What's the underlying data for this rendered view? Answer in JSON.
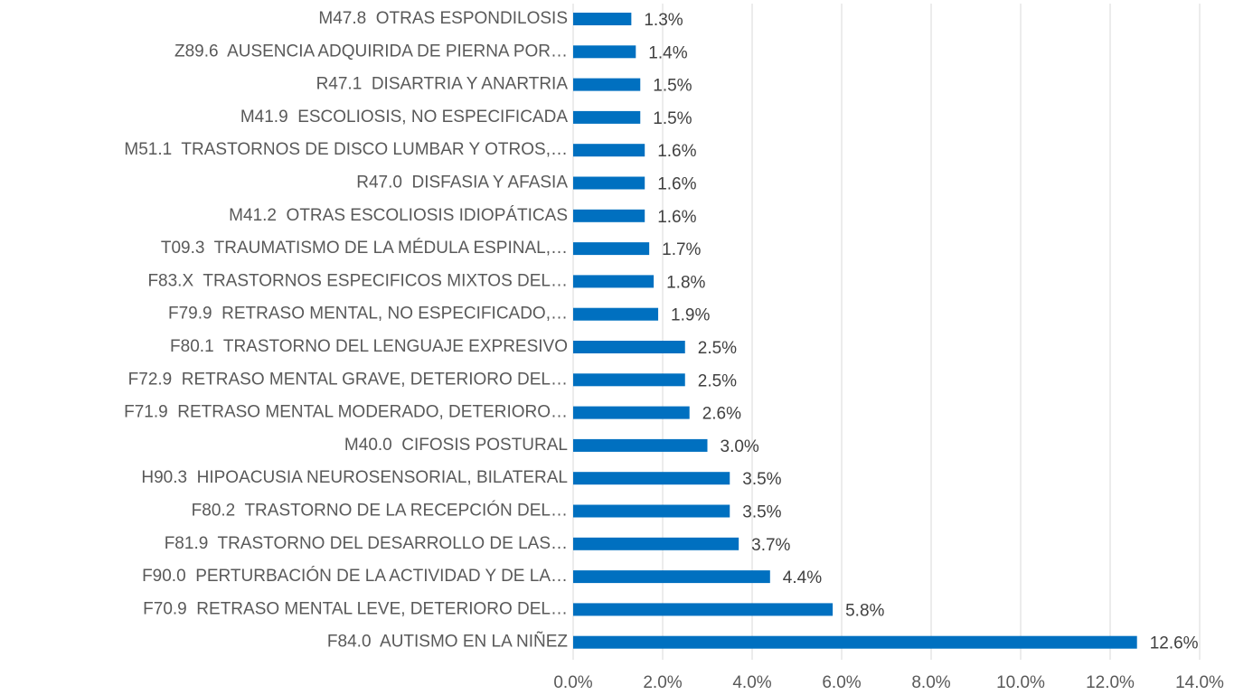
{
  "chart_data": {
    "type": "barh",
    "categories": [
      "M47.8  OTRAS ESPONDILOSIS",
      "Z89.6  AUSENCIA ADQUIRIDA DE PIERNA POR…",
      "R47.1  DISARTRIA Y ANARTRIA",
      "M41.9  ESCOLIOSIS, NO ESPECIFICADA",
      "M51.1  TRASTORNOS DE DISCO LUMBAR Y OTROS,…",
      "R47.0  DISFASIA Y AFASIA",
      "M41.2  OTRAS ESCOLIOSIS IDIOPÁTICAS",
      "T09.3  TRAUMATISMO DE LA MÉDULA ESPINAL,…",
      "F83.X  TRASTORNOS ESPECIFICOS MIXTOS DEL…",
      "F79.9  RETRASO MENTAL, NO ESPECIFICADO,…",
      "F80.1  TRASTORNO DEL LENGUAJE EXPRESIVO",
      "F72.9  RETRASO MENTAL GRAVE, DETERIORO DEL…",
      "F71.9  RETRASO MENTAL MODERADO, DETERIORO…",
      "M40.0  CIFOSIS POSTURAL",
      "H90.3  HIPOACUSIA NEUROSENSORIAL, BILATERAL",
      "F80.2  TRASTORNO DE LA RECEPCIÓN DEL…",
      "F81.9  TRASTORNO DEL DESARROLLO DE LAS…",
      "F90.0  PERTURBACIÓN DE LA ACTIVIDAD Y DE LA…",
      "F70.9  RETRASO MENTAL LEVE, DETERIORO DEL…",
      "F84.0  AUTISMO EN LA NIÑEZ"
    ],
    "values": [
      1.3,
      1.4,
      1.5,
      1.5,
      1.6,
      1.6,
      1.6,
      1.7,
      1.8,
      1.9,
      2.5,
      2.5,
      2.6,
      3.0,
      3.5,
      3.5,
      3.7,
      4.4,
      5.8,
      12.6
    ],
    "value_labels": [
      "1.3%",
      "1.4%",
      "1.5%",
      "1.5%",
      "1.6%",
      "1.6%",
      "1.6%",
      "1.7%",
      "1.8%",
      "1.9%",
      "2.5%",
      "2.5%",
      "2.6%",
      "3.0%",
      "3.5%",
      "3.5%",
      "3.7%",
      "4.4%",
      "5.8%",
      "12.6%"
    ],
    "color": "#0070c0",
    "xlim": [
      0,
      14
    ],
    "xticks": [
      {
        "value": 0,
        "label": "0.0%"
      },
      {
        "value": 2,
        "label": "2.0%"
      },
      {
        "value": 4,
        "label": "4.0%"
      },
      {
        "value": 6,
        "label": "6.0%"
      },
      {
        "value": 8,
        "label": "8.0%"
      },
      {
        "value": 10,
        "label": "10.0%"
      },
      {
        "value": 12,
        "label": "12.0%"
      },
      {
        "value": 14,
        "label": "14.0%"
      }
    ],
    "grid": true
  }
}
